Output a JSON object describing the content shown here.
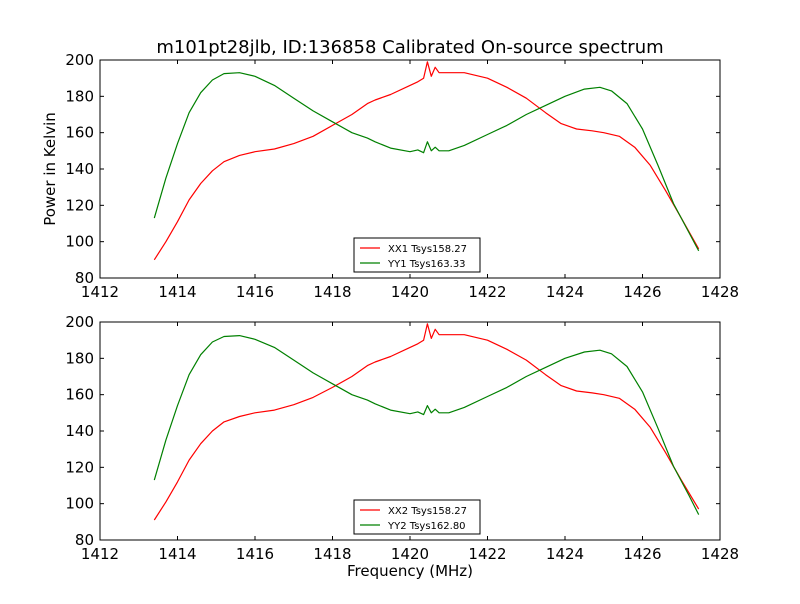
{
  "title": "m101pt28jlb, ID:136858 Calibrated On-source spectrum",
  "ylabel": "Power in Kelvin",
  "xlabel": "Frequency (MHz)",
  "chart_data": [
    {
      "type": "line",
      "xlim": [
        1412,
        1428
      ],
      "ylim": [
        80,
        200
      ],
      "xticks": [
        "1412",
        "1414",
        "1416",
        "1418",
        "1420",
        "1422",
        "1424",
        "1426",
        "1428"
      ],
      "yticks": [
        "80",
        "100",
        "120",
        "140",
        "160",
        "180",
        "200"
      ],
      "legend_position": "lower-center",
      "series": [
        {
          "name": "XX1 Tsys158.27",
          "color": "#ff0000",
          "x": [
            1413.4,
            1413.7,
            1414.0,
            1414.3,
            1414.6,
            1414.9,
            1415.2,
            1415.6,
            1416.0,
            1416.5,
            1417.0,
            1417.5,
            1418.0,
            1418.5,
            1418.9,
            1419.1,
            1419.5,
            1420.0,
            1420.2,
            1420.35,
            1420.45,
            1420.55,
            1420.65,
            1420.75,
            1421.0,
            1421.4,
            1422.0,
            1422.5,
            1423.0,
            1423.5,
            1423.9,
            1424.3,
            1424.7,
            1425.0,
            1425.4,
            1425.8,
            1426.2,
            1426.6,
            1427.0,
            1427.45
          ],
          "values": [
            90,
            100,
            111,
            123,
            132,
            139,
            144,
            147.5,
            149.5,
            151,
            154,
            158,
            164,
            170,
            176,
            178,
            181,
            186,
            188,
            190,
            199,
            191,
            196,
            193,
            193,
            193,
            190,
            185,
            179,
            171,
            165,
            162,
            161,
            160,
            158,
            152,
            142,
            128,
            113,
            96
          ]
        },
        {
          "name": "YY1 Tsys163.33",
          "color": "#008000",
          "x": [
            1413.4,
            1413.7,
            1414.0,
            1414.3,
            1414.6,
            1414.9,
            1415.2,
            1415.6,
            1416.0,
            1416.5,
            1417.0,
            1417.5,
            1418.0,
            1418.5,
            1418.9,
            1419.1,
            1419.5,
            1420.0,
            1420.2,
            1420.35,
            1420.45,
            1420.55,
            1420.65,
            1420.75,
            1421.0,
            1421.4,
            1422.0,
            1422.5,
            1423.0,
            1423.5,
            1424.0,
            1424.5,
            1424.9,
            1425.2,
            1425.6,
            1426.0,
            1426.4,
            1426.8,
            1427.2,
            1427.45
          ],
          "values": [
            113,
            135,
            154,
            171,
            182,
            189,
            192.5,
            193,
            191,
            186,
            179,
            172,
            166,
            160,
            157,
            155,
            151.5,
            149.5,
            150.5,
            149,
            155,
            150,
            152,
            150,
            150,
            153,
            159,
            164,
            170,
            175,
            180,
            184,
            185,
            183,
            176,
            162,
            142,
            121,
            105,
            95
          ]
        }
      ]
    },
    {
      "type": "line",
      "xlim": [
        1412,
        1428
      ],
      "ylim": [
        80,
        200
      ],
      "xticks": [
        "1412",
        "1414",
        "1416",
        "1418",
        "1420",
        "1422",
        "1424",
        "1426",
        "1428"
      ],
      "yticks": [
        "80",
        "100",
        "120",
        "140",
        "160",
        "180",
        "200"
      ],
      "legend_position": "lower-center",
      "series": [
        {
          "name": "XX2 Tsys158.27",
          "color": "#ff0000",
          "x": [
            1413.4,
            1413.7,
            1414.0,
            1414.3,
            1414.6,
            1414.9,
            1415.2,
            1415.6,
            1416.0,
            1416.5,
            1417.0,
            1417.5,
            1418.0,
            1418.5,
            1418.9,
            1419.1,
            1419.5,
            1420.0,
            1420.2,
            1420.35,
            1420.45,
            1420.55,
            1420.65,
            1420.75,
            1421.0,
            1421.4,
            1422.0,
            1422.5,
            1423.0,
            1423.5,
            1423.9,
            1424.3,
            1424.7,
            1425.0,
            1425.4,
            1425.8,
            1426.2,
            1426.6,
            1427.0,
            1427.45
          ],
          "values": [
            91,
            101,
            112,
            124,
            133,
            140,
            145,
            148,
            150,
            151.5,
            154.5,
            158.5,
            164,
            170,
            176,
            178,
            181,
            186,
            188,
            190,
            199,
            191,
            196,
            193,
            193,
            193,
            190,
            185,
            179,
            171,
            165,
            162,
            161,
            160,
            158,
            152,
            142,
            128,
            113,
            97
          ]
        },
        {
          "name": "YY2 Tsys162.80",
          "color": "#008000",
          "x": [
            1413.4,
            1413.7,
            1414.0,
            1414.3,
            1414.6,
            1414.9,
            1415.2,
            1415.6,
            1416.0,
            1416.5,
            1417.0,
            1417.5,
            1418.0,
            1418.5,
            1418.9,
            1419.1,
            1419.5,
            1420.0,
            1420.2,
            1420.35,
            1420.45,
            1420.55,
            1420.65,
            1420.75,
            1421.0,
            1421.4,
            1422.0,
            1422.5,
            1423.0,
            1423.5,
            1424.0,
            1424.5,
            1424.9,
            1425.2,
            1425.6,
            1426.0,
            1426.4,
            1426.8,
            1427.2,
            1427.45
          ],
          "values": [
            113,
            135,
            154,
            171,
            182,
            189,
            192,
            192.5,
            190.5,
            186,
            179,
            172,
            166,
            160,
            157,
            155,
            151.5,
            149.5,
            150.5,
            149,
            154,
            150,
            152,
            150,
            150,
            153,
            159,
            164,
            170,
            175,
            180,
            183.5,
            184.5,
            182.5,
            175.5,
            161.5,
            141.5,
            120.5,
            104.5,
            94
          ]
        }
      ]
    }
  ]
}
